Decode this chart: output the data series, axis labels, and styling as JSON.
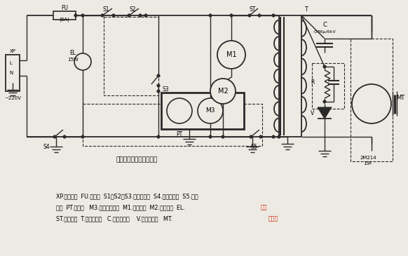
{
  "bg_color": "#ede9e3",
  "line_color": "#2a2a2a",
  "caption": "（图中炉门为开启状态）",
  "label_220": "~220V",
  "label_XP": "XP",
  "label_L": "L",
  "label_N": "N",
  "label_FU": "FU",
  "label_8A": "(8A)",
  "label_S1": "S1",
  "label_S2": "S2",
  "label_ST": "ST",
  "label_T": "T",
  "label_EL": "EL",
  "label_15W": "15W",
  "label_S3": "S3",
  "label_PT": "PT",
  "label_M1": "M1",
  "label_M2": "M2",
  "label_M3": "M3",
  "label_S4": "S4",
  "label_S5": "S5",
  "label_C": "C",
  "label_C_spec": "0.86μ/6kV",
  "label_R": "R",
  "label_V": "V",
  "label_2M214": "2M214",
  "label_19F": "19F",
  "label_MT": "MT",
  "legend1": "XP.电源插头  FU.熔断器  S1、S2、S3.门联锁开关  S4.定时器开关  S5.火力",
  "legend2_black": "开关  PT.定时器   M3.定时火力电机  M1.转盘电机  M2.风扇电机  EL.",
  "legend2_red": "炉灯",
  "legend3_black": "ST.温控开关  T.高压变压器   C.高压电容器    V.高压二极管   MT.",
  "legend3_red": "磁控管"
}
